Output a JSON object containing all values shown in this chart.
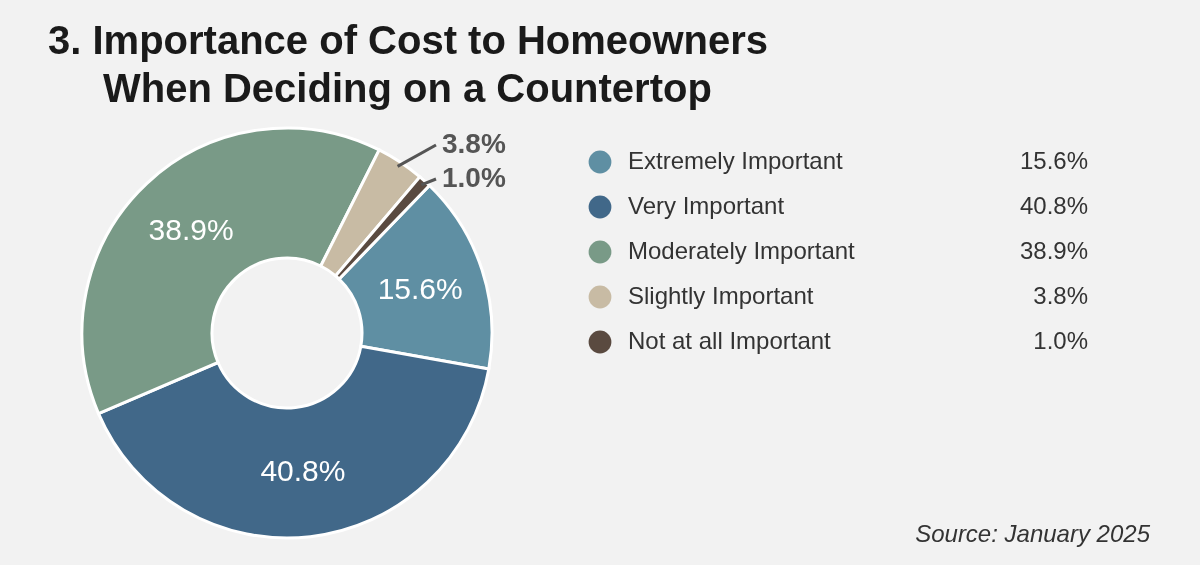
{
  "chart_data": {
    "type": "donut",
    "title": "3. Importance of Cost to Homeowners\nWhen Deciding on a Countertop",
    "categories": [
      "Extremely Important",
      "Very Important",
      "Moderately Important",
      "Slightly Important",
      "Not at all Important"
    ],
    "values": [
      15.6,
      40.8,
      38.9,
      3.8,
      1.0
    ],
    "colors": [
      "#5f8fa3",
      "#416889",
      "#799a87",
      "#c8bba4",
      "#5a4a40"
    ],
    "value_labels": [
      "15.6%",
      "40.8%",
      "38.9%",
      "3.8%",
      "1.0%"
    ],
    "legend": "right",
    "annotations": [
      "Source: January 2025"
    ]
  }
}
